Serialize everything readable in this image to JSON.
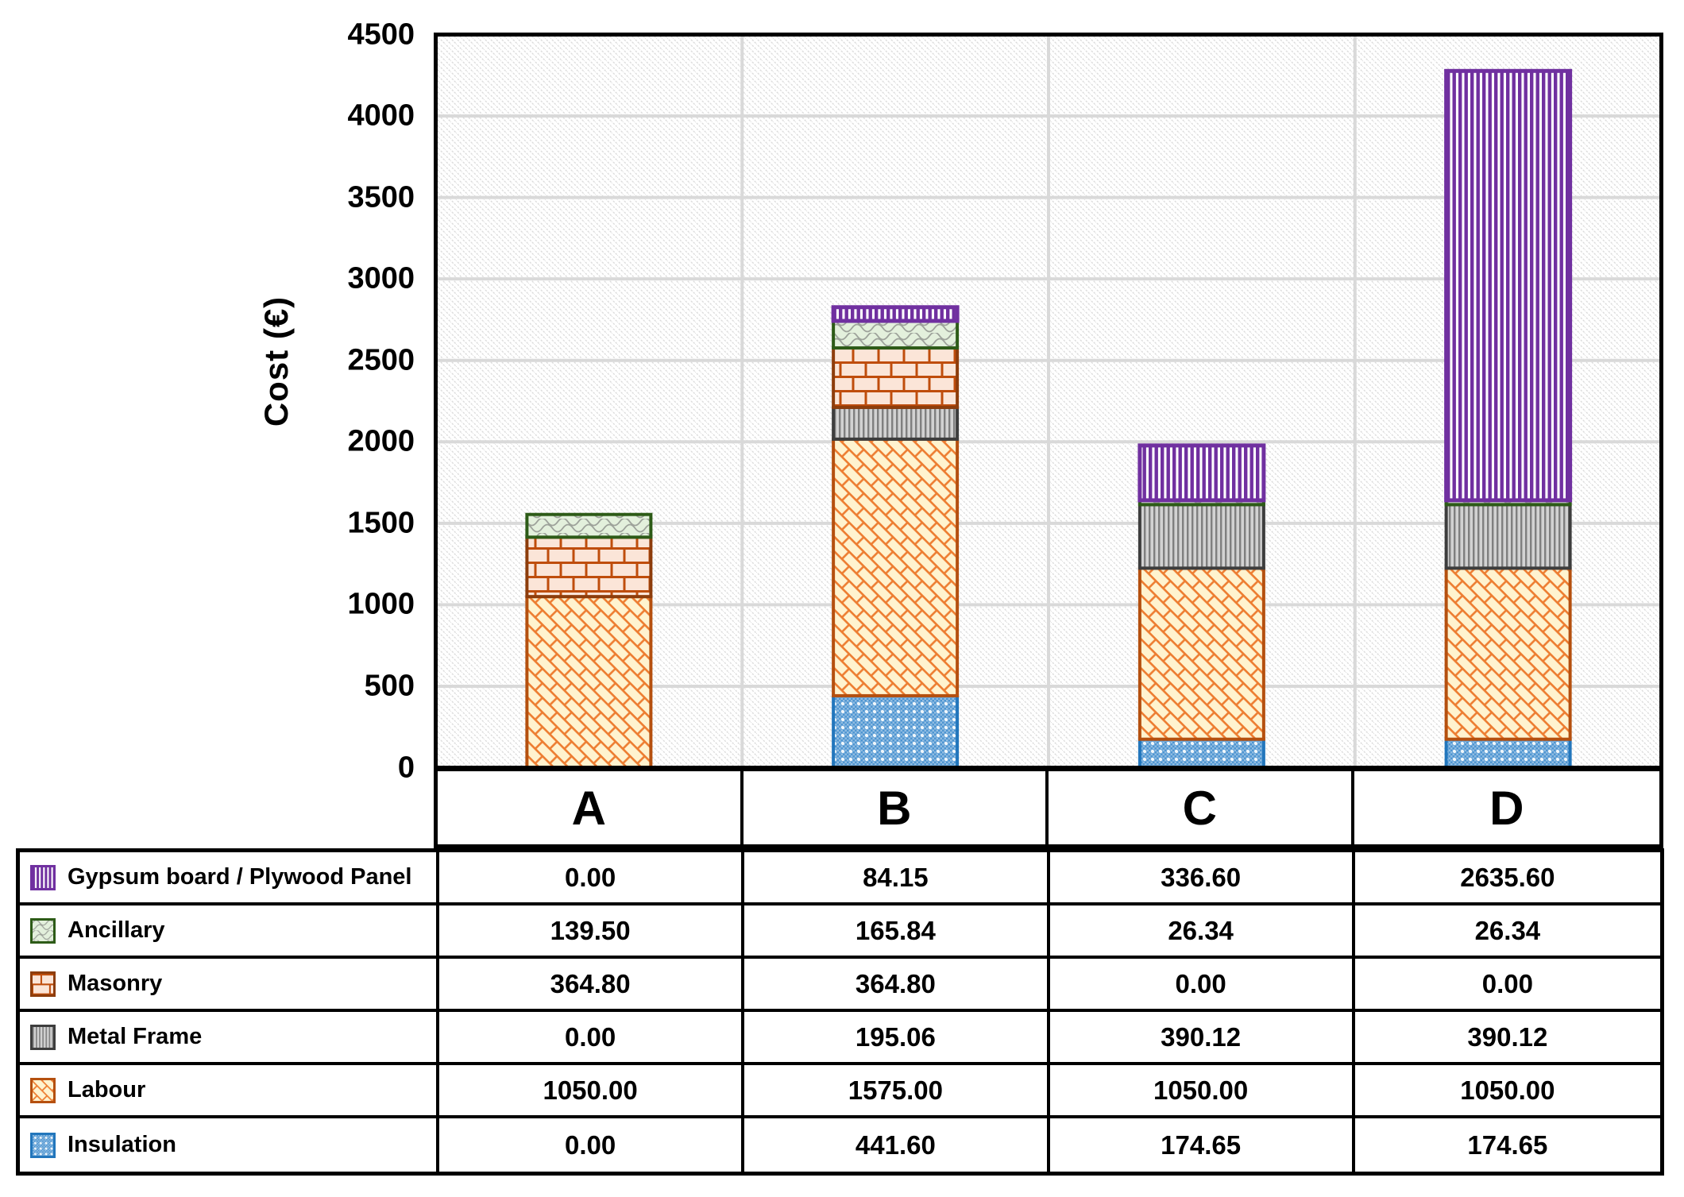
{
  "chart_data": {
    "type": "bar",
    "stacked": true,
    "orientation": "vertical",
    "ylabel": "Cost (€)",
    "xlabel": "",
    "ylim": [
      0,
      4500
    ],
    "ytick_step": 500,
    "grid": "horizontal-and-category-boundaries",
    "plot_background": "diagonal-hatch",
    "legend_position": "table-below-left-column",
    "categories": [
      "A",
      "B",
      "C",
      "D"
    ],
    "stack_order_bottom_to_top": [
      "Insulation",
      "Labour",
      "Metal Frame",
      "Masonry",
      "Ancillary",
      "Gypsum board / Plywood Panel"
    ],
    "series": [
      {
        "key": "gypsum",
        "name": "Gypsum board / Plywood Panel",
        "values": [
          0.0,
          84.15,
          336.6,
          2635.6
        ],
        "display": [
          "0.00",
          "84.15",
          "336.60",
          "2635.60"
        ],
        "pattern": "vertical-stripes",
        "colors": {
          "border": "#7030A0",
          "line": "#7030A0",
          "bg": "#FFFFFF"
        }
      },
      {
        "key": "ancillary",
        "name": "Ancillary",
        "values": [
          139.5,
          165.84,
          26.34,
          26.34
        ],
        "display": [
          "139.50",
          "165.84",
          "26.34",
          "26.34"
        ],
        "pattern": "gray-waves-on-light-green",
        "colors": {
          "border": "#2D5B17",
          "line": "#9DA29A",
          "bg": "#E3F0DC"
        }
      },
      {
        "key": "masonry",
        "name": "Masonry",
        "values": [
          364.8,
          364.8,
          0.0,
          0.0
        ],
        "display": [
          "364.80",
          "364.80",
          "0.00",
          "0.00"
        ],
        "pattern": "brick",
        "colors": {
          "border": "#8D3D0C",
          "line": "#BF4D0C",
          "bg": "#FBE5D8"
        }
      },
      {
        "key": "metal",
        "name": "Metal Frame",
        "values": [
          0.0,
          195.06,
          390.12,
          390.12
        ],
        "display": [
          "0.00",
          "195.06",
          "390.12",
          "390.12"
        ],
        "pattern": "gray-vertical-stripes",
        "colors": {
          "border": "#3D3D3D",
          "line": "#7F7F7F",
          "bg": "#D2D2D2"
        }
      },
      {
        "key": "labour",
        "name": "Labour",
        "values": [
          1050.0,
          1575.0,
          1050.0,
          1050.0
        ],
        "display": [
          "1050.00",
          "1575.00",
          "1050.00",
          "1050.00"
        ],
        "pattern": "diagonal-basketweave",
        "colors": {
          "border": "#B5500F",
          "line": "#ED7D31",
          "bg": "#FFF3CF"
        }
      },
      {
        "key": "insulation",
        "name": "Insulation",
        "values": [
          0.0,
          441.6,
          174.65,
          174.65
        ],
        "display": [
          "0.00",
          "441.60",
          "174.65",
          "174.65"
        ],
        "pattern": "blue-dot-checker",
        "colors": {
          "border": "#2276BC",
          "line": "#FFFFFF",
          "bg": "#4E95D1"
        }
      }
    ],
    "colors": {
      "hatch_line": "#DCDCDC",
      "gridline": "#D9D9D9",
      "axis": "#000000",
      "text": "#000000"
    }
  }
}
